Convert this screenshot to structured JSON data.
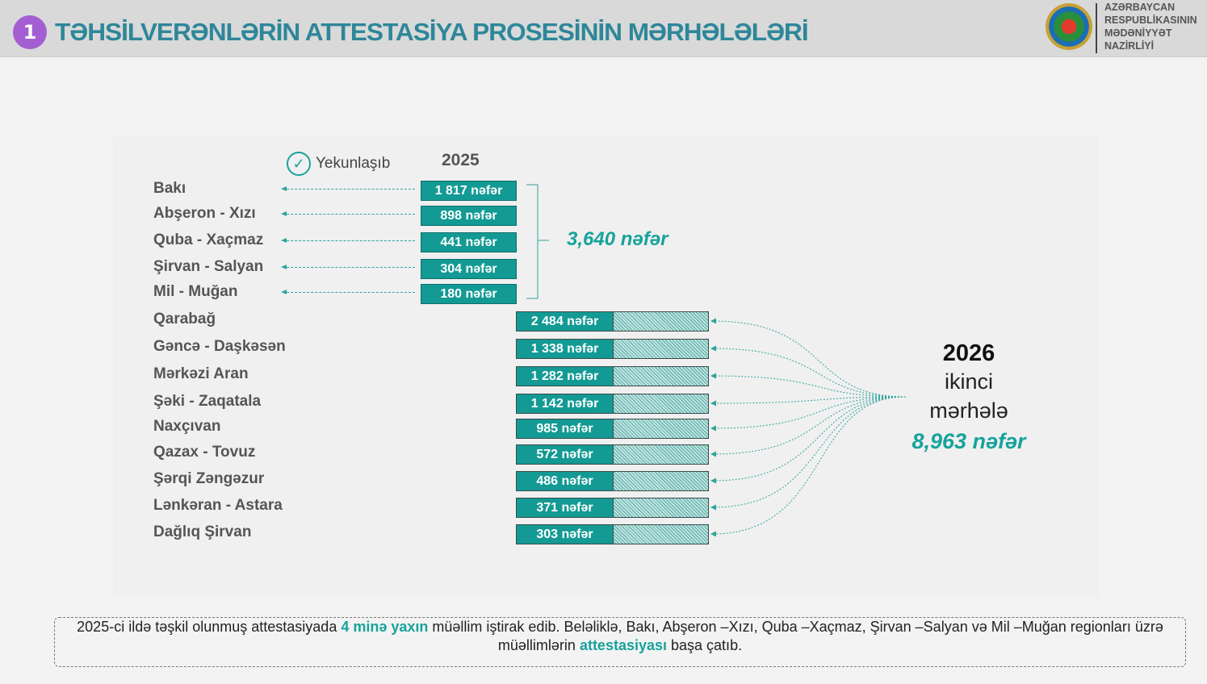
{
  "header": {
    "badge": "1",
    "title": "TƏHSİLVERƏNLƏRİN ATTESTASİYA PROSESİNİN MƏRHƏLƏLƏRİ",
    "ministry": [
      "AZƏRBAYCAN",
      "RESPUBLİKASININ",
      "MƏDƏNİYYƏT",
      "NAZİRLİYİ"
    ]
  },
  "stage1": {
    "status": "Yekunlaşıb",
    "year": "2025",
    "total": "3,640 nəfər",
    "rows": [
      {
        "region": "Bakı",
        "count": "1 817 nəfər"
      },
      {
        "region": "Abşeron - Xızı",
        "count": "898 nəfər"
      },
      {
        "region": "Quba - Xaçmaz",
        "count": "441 nəfər"
      },
      {
        "region": "Şirvan - Salyan",
        "count": "304 nəfər"
      },
      {
        "region": "Mil - Muğan",
        "count": "180 nəfər"
      }
    ]
  },
  "stage2": {
    "year": "2026",
    "line1": "ikinci",
    "line2": "mərhələ",
    "total": "8,963 nəfər",
    "rows": [
      {
        "region": "Qarabağ",
        "count": "2 484 nəfər"
      },
      {
        "region": "Gəncə - Daşkəsən",
        "count": "1 338 nəfər"
      },
      {
        "region": "Mərkəzi Aran",
        "count": "1 282 nəfər"
      },
      {
        "region": "Şəki - Zaqatala",
        "count": "1 142 nəfər"
      },
      {
        "region": "Naxçıvan",
        "count": "985 nəfər"
      },
      {
        "region": "Qazax - Tovuz",
        "count": "572 nəfər"
      },
      {
        "region": "Şərqi Zəngəzur",
        "count": "486 nəfər"
      },
      {
        "region": "Lənkəran - Astara",
        "count": "371 nəfər"
      },
      {
        "region": "Dağlıq Şirvan",
        "count": "303 nəfər"
      }
    ]
  },
  "footer": {
    "p1": "2025-ci ildə təşkil olunmuş attestasiyada ",
    "h1": "4 minə yaxın",
    "p2": " müəllim iştirak edib. Beləliklə, Bakı, Abşeron –Xızı, Quba –Xaçmaz, Şirvan –Salyan və Mil –Muğan regionları üzrə müəllimlərin ",
    "h2": "attestasiyası",
    "p3": " başa çatıb."
  },
  "colors": {
    "teal": "#139a94",
    "purple": "#a35fd2",
    "title": "#2e8799"
  }
}
